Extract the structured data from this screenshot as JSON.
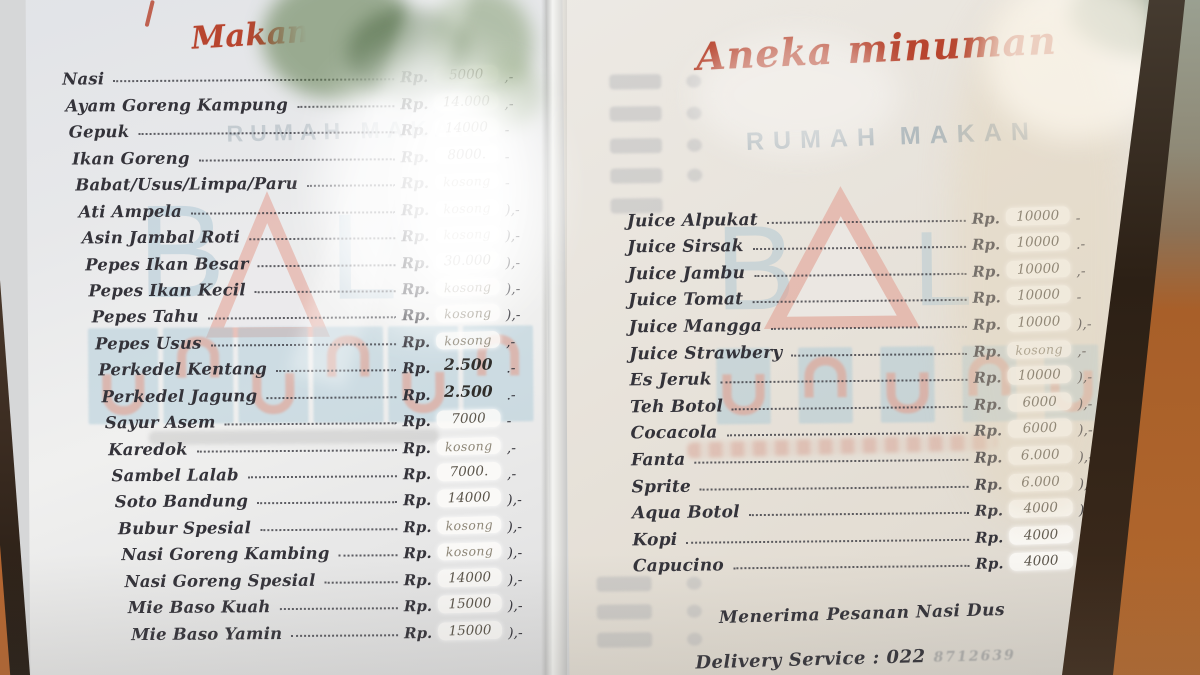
{
  "currency_label": "Rp.",
  "brand": {
    "rumah_makan": "RUMAH MAKAN",
    "logo_letter_b": "B",
    "logo_letter_l": "L"
  },
  "left_page": {
    "heading": "Makan",
    "items": [
      {
        "name": "Nasi",
        "price": "5000",
        "suffix": ",-",
        "style": "patch"
      },
      {
        "name": "Ayam Goreng Kampung",
        "price": "14.000",
        "suffix": ",-",
        "style": "patch"
      },
      {
        "name": "Gepuk",
        "price": "14000",
        "suffix": "-",
        "style": "patch"
      },
      {
        "name": "Ikan Goreng",
        "price": "8000.",
        "suffix": "-",
        "style": "patch"
      },
      {
        "name": "Babat/Usus/Limpa/Paru",
        "price": "kosong",
        "suffix": "-",
        "style": "empty"
      },
      {
        "name": "Ati Ampela",
        "price": "kosong",
        "suffix": "),-",
        "style": "empty"
      },
      {
        "name": "Asin Jambal Roti",
        "price": "kosong",
        "suffix": "),-",
        "style": "empty"
      },
      {
        "name": "Pepes Ikan Besar",
        "price": "30.000",
        "suffix": "),-",
        "style": "patch"
      },
      {
        "name": "Pepes Ikan Kecil",
        "price": "kosong",
        "suffix": "),-",
        "style": "empty"
      },
      {
        "name": "Pepes Tahu",
        "price": "kosong",
        "suffix": "),-",
        "style": "empty"
      },
      {
        "name": "Pepes Usus",
        "price": "kosong",
        "suffix": ",-",
        "style": "empty"
      },
      {
        "name": "Perkedel Kentang",
        "price": "2.500",
        "suffix": ".-",
        "style": "plain"
      },
      {
        "name": "Perkedel Jagung",
        "price": "2.500",
        "suffix": ".-",
        "style": "plain"
      },
      {
        "name": "Sayur Asem",
        "price": "7000",
        "suffix": "-",
        "style": "patch"
      },
      {
        "name": "Karedok",
        "price": "kosong",
        "suffix": ",-",
        "style": "empty"
      },
      {
        "name": "Sambel Lalab",
        "price": "7000.",
        "suffix": ",-",
        "style": "patch"
      },
      {
        "name": "Soto Bandung",
        "price": "14000",
        "suffix": "),-",
        "style": "patch"
      },
      {
        "name": "Bubur Spesial",
        "price": "kosong",
        "suffix": "),-",
        "style": "empty"
      },
      {
        "name": "Nasi Goreng Kambing",
        "price": "kosong",
        "suffix": "),-",
        "style": "empty"
      },
      {
        "name": "Nasi Goreng Spesial",
        "price": "14000",
        "suffix": "),-",
        "style": "patch"
      },
      {
        "name": "Mie Baso Kuah",
        "price": "15000",
        "suffix": "),-",
        "style": "patch"
      },
      {
        "name": "Mie Baso Yamin",
        "price": "15000",
        "suffix": "),-",
        "style": "patch"
      }
    ]
  },
  "right_page": {
    "heading": "Aneka minuman",
    "items": [
      {
        "name": "Juice Alpukat",
        "price": "10000",
        "suffix": "-",
        "style": "patch"
      },
      {
        "name": "Juice Sirsak",
        "price": "10000",
        "suffix": ".-",
        "style": "patch"
      },
      {
        "name": "Juice Jambu",
        "price": "10000",
        "suffix": ",-",
        "style": "patch"
      },
      {
        "name": "Juice Tomat",
        "price": "10000",
        "suffix": "-",
        "style": "patch"
      },
      {
        "name": "Juice Mangga",
        "price": "10000",
        "suffix": "),-",
        "style": "patch"
      },
      {
        "name": "Juice Strawbery",
        "price": "kosong",
        "suffix": ",-",
        "style": "empty"
      },
      {
        "name": "Es Jeruk",
        "price": "10000",
        "suffix": "),-",
        "style": "patch"
      },
      {
        "name": "Teh Botol",
        "price": "6000",
        "suffix": "),-",
        "style": "patch"
      },
      {
        "name": "Cocacola",
        "price": "6000",
        "suffix": "),-",
        "style": "patch"
      },
      {
        "name": "Fanta",
        "price": "6.000",
        "suffix": "),-",
        "style": "patch"
      },
      {
        "name": "Sprite",
        "price": "6.000",
        "suffix": "),-",
        "style": "patch"
      },
      {
        "name": "Aqua Botol",
        "price": "4000",
        "suffix": "),-",
        "style": "patch"
      },
      {
        "name": "Kopi",
        "price": "4000",
        "suffix": "),-",
        "style": "patch"
      },
      {
        "name": "Capucino",
        "price": "4000",
        "suffix": ",-",
        "style": "patch"
      }
    ],
    "note": "Menerima Pesanan Nasi Dus",
    "delivery": "Delivery Service : 022",
    "delivery_phone_faint": "8712639"
  }
}
